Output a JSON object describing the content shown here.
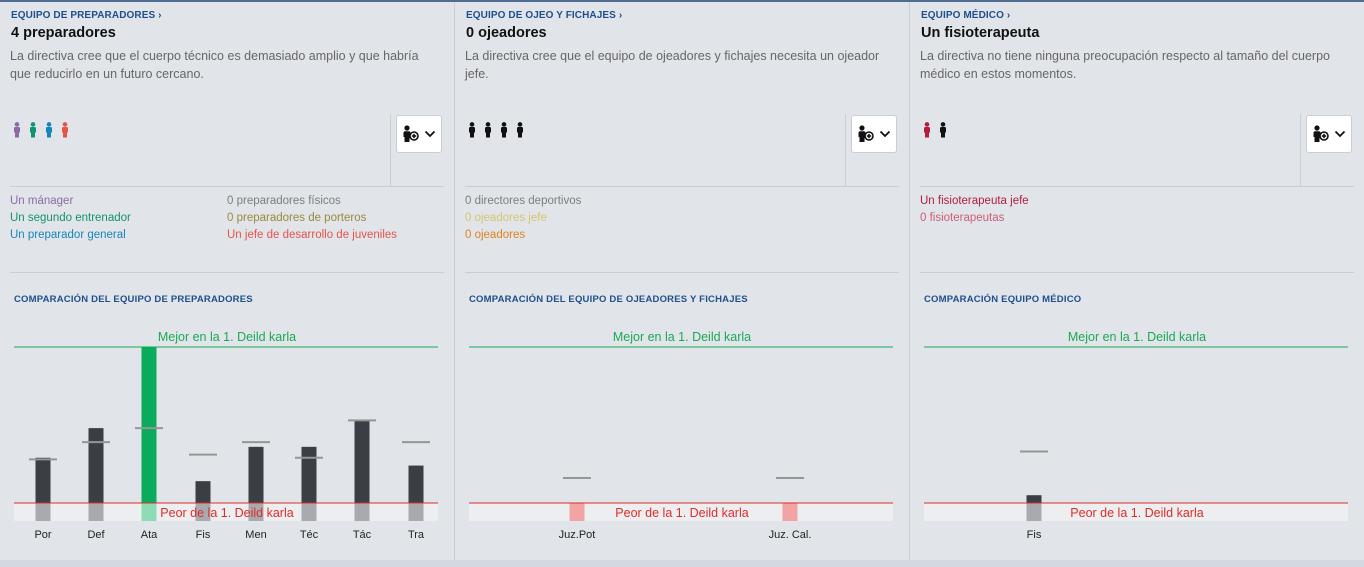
{
  "colors": {
    "link": "#1f4f8c",
    "best_line": "#1aa956",
    "worst_line": "#dd2c2c",
    "bar_dark": "#3b3e44",
    "bar_highlight": "#0aab5d",
    "bar_below_gray": "#a9aaad",
    "bar_below_highlight": "#8fdcb4",
    "bar_below_red": "#f2a3a3",
    "marker": "#969696",
    "worst_band": "#eceeef"
  },
  "panels": [
    {
      "section_link": "EQUIPO DE PREPARADORES",
      "headline": "4 preparadores",
      "description": "La directiva cree que el cuerpo técnico es demasiado amplio y que habría que reducirlo en un futuro cercano.",
      "staff_icons": [
        {
          "icon": "person-icon",
          "color": "#8a6aa7"
        },
        {
          "icon": "person-icon",
          "color": "#139272"
        },
        {
          "icon": "person-icon",
          "color": "#1785b9"
        },
        {
          "icon": "person-icon",
          "color": "#e6534b"
        }
      ],
      "dropdown_icon": "add-staff-icon",
      "roles_left": [
        {
          "text": "Un mánager",
          "color": "#8a6aa7"
        },
        {
          "text": "Un segundo entrenador",
          "color": "#139272"
        },
        {
          "text": "Un preparador general",
          "color": "#1785b9"
        }
      ],
      "roles_right": [
        {
          "text": "0 preparadores físicos",
          "color": "#7d7d7d"
        },
        {
          "text": "0 preparadores de porteros",
          "color": "#9a8a3c"
        },
        {
          "text": "Un jefe de desarrollo de juveniles",
          "color": "#e6534b"
        }
      ],
      "comparison_title": "COMPARACIÓN DEL EQUIPO DE PREPARADORES",
      "best_label": "Mejor en la 1. Deild karla",
      "worst_label": "Peor de la 1. Deild karla",
      "chart_data": {
        "type": "bar",
        "categories": [
          "Por",
          "Def",
          "Ata",
          "Fis",
          "Men",
          "Téc",
          "Tác",
          "Tra"
        ],
        "values": [
          0.29,
          0.48,
          1.0,
          0.14,
          0.36,
          0.36,
          0.53,
          0.24
        ],
        "league_average": [
          0.28,
          0.39,
          0.48,
          0.31,
          0.39,
          0.29,
          0.53,
          0.39
        ],
        "highlight": "Ata",
        "ylim": [
          -0.1,
          1.0
        ]
      }
    },
    {
      "section_link": "EQUIPO DE OJEO Y FICHAJES",
      "headline": "0 ojeadores",
      "description": "La directiva cree que el equipo de ojeadores y fichajes necesita un ojeador jefe.",
      "staff_icons": [
        {
          "icon": "person-icon",
          "color": "#111111"
        },
        {
          "icon": "person-icon",
          "color": "#111111"
        },
        {
          "icon": "person-icon",
          "color": "#111111"
        },
        {
          "icon": "person-icon",
          "color": "#111111"
        }
      ],
      "dropdown_icon": "add-staff-icon",
      "roles_left": [
        {
          "text": "0 directores deportivos",
          "color": "#7d7d7d"
        },
        {
          "text": "0 ojeadores jefe",
          "color": "#d6c56f"
        },
        {
          "text": "0 ojeadores",
          "color": "#e0821e"
        }
      ],
      "roles_right": [],
      "comparison_title": "COMPARACIÓN DEL EQUIPO DE OJEADORES Y FICHAJES",
      "best_label": "Mejor en la 1. Deild karla",
      "worst_label": "Peor de la 1. Deild karla",
      "chart_data": {
        "type": "bar",
        "categories": [
          "Juz.Pot",
          "Juz. Cal."
        ],
        "values": [
          -0.1,
          -0.1
        ],
        "league_average": [
          0.16,
          0.16
        ],
        "highlight": "",
        "ylim": [
          -0.1,
          1.0
        ]
      }
    },
    {
      "section_link": "EQUIPO MÉDICO",
      "headline": "Un fisioterapeuta",
      "description": "La directiva no tiene ninguna preocupación respecto al tamaño del cuerpo médico en estos momentos.",
      "staff_icons": [
        {
          "icon": "person-icon",
          "color": "#b11d3f"
        },
        {
          "icon": "person-icon",
          "color": "#111111"
        }
      ],
      "dropdown_icon": "add-staff-icon",
      "roles_left": [
        {
          "text": "Un fisioterapeuta jefe",
          "color": "#b11d3f"
        },
        {
          "text": "0 fisioterapeutas",
          "color": "#cd5c78"
        }
      ],
      "roles_right": [],
      "comparison_title": "COMPARACIÓN EQUIPO MÉDICO",
      "best_label": "Mejor en la 1. Deild karla",
      "worst_label": "Peor de la 1. Deild karla",
      "chart_data": {
        "type": "bar",
        "categories": [
          "Fis"
        ],
        "values": [
          0.05
        ],
        "league_average": [
          0.33
        ],
        "highlight": "",
        "ylim": [
          -0.1,
          1.0
        ]
      }
    }
  ]
}
